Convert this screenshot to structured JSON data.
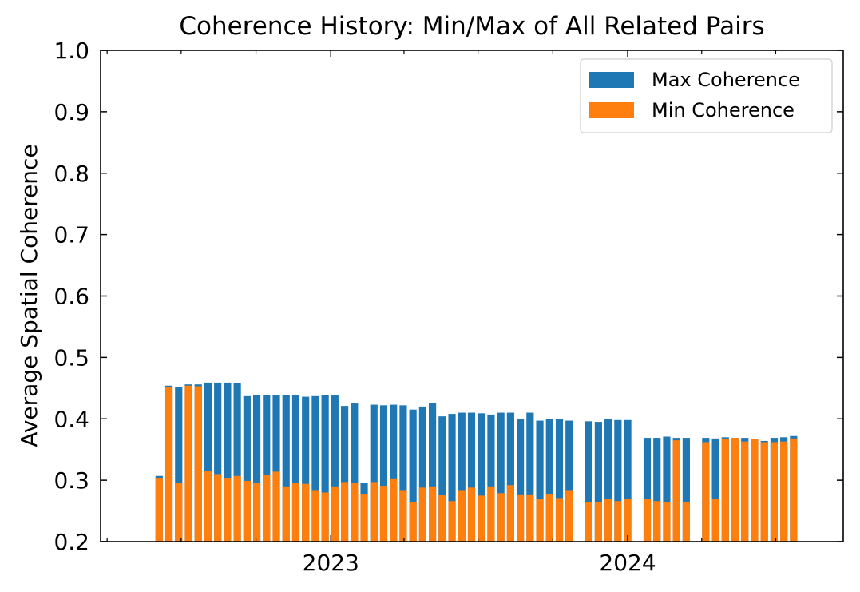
{
  "chart_data": {
    "type": "bar",
    "title": "Coherence History: Min/Max of All Related Pairs",
    "xlabel": "",
    "ylabel": "Average Spatial Coherence",
    "ylim": [
      0.2,
      1.0
    ],
    "xlim": [
      "2022-03-24",
      "2024-09-22"
    ],
    "y_ticks": [
      "0.2",
      "0.3",
      "0.4",
      "0.5",
      "0.6",
      "0.7",
      "0.8",
      "0.9",
      "1.0"
    ],
    "x_ticks": [
      {
        "label": "2023",
        "date": "2023-01-01"
      },
      {
        "label": "2024",
        "date": "2024-01-01"
      }
    ],
    "grid": false,
    "legend": "top-right",
    "colors": {
      "max": "#1f77b4",
      "min": "#ff7f0e"
    },
    "series": [
      {
        "name": "Max Coherence",
        "x": [
          "2022-06-04",
          "2022-06-16",
          "2022-06-28",
          "2022-07-10",
          "2022-07-22",
          "2022-08-03",
          "2022-08-15",
          "2022-08-27",
          "2022-09-08",
          "2022-09-20",
          "2022-10-02",
          "2022-10-14",
          "2022-10-26",
          "2022-11-07",
          "2022-11-19",
          "2022-12-01",
          "2022-12-13",
          "2022-12-25",
          "2023-01-06",
          "2023-01-18",
          "2023-01-30",
          "2023-02-11",
          "2023-02-23",
          "2023-03-07",
          "2023-03-19",
          "2023-03-31",
          "2023-04-12",
          "2023-04-24",
          "2023-05-06",
          "2023-05-18",
          "2023-05-30",
          "2023-06-11",
          "2023-06-23",
          "2023-07-05",
          "2023-07-17",
          "2023-07-29",
          "2023-08-10",
          "2023-08-22",
          "2023-09-03",
          "2023-09-15",
          "2023-09-27",
          "2023-10-09",
          "2023-10-21",
          "2023-11-14",
          "2023-11-26",
          "2023-12-08",
          "2023-12-20",
          "2024-01-01",
          "2024-01-25",
          "2024-02-06",
          "2024-02-18",
          "2024-03-01",
          "2024-03-13",
          "2024-04-06",
          "2024-04-18",
          "2024-04-30",
          "2024-05-12",
          "2024-05-24",
          "2024-06-05",
          "2024-06-17",
          "2024-06-29",
          "2024-07-11",
          "2024-07-23"
        ],
        "values": [
          0.307,
          0.454,
          0.452,
          0.456,
          0.456,
          0.459,
          0.459,
          0.459,
          0.458,
          0.437,
          0.439,
          0.439,
          0.439,
          0.439,
          0.439,
          0.436,
          0.437,
          0.439,
          0.438,
          0.421,
          0.425,
          0.295,
          0.423,
          0.422,
          0.423,
          0.422,
          0.415,
          0.42,
          0.425,
          0.404,
          0.408,
          0.41,
          0.41,
          0.409,
          0.407,
          0.41,
          0.41,
          0.399,
          0.41,
          0.397,
          0.4,
          0.399,
          0.397,
          0.396,
          0.395,
          0.4,
          0.398,
          0.398,
          0.369,
          0.369,
          0.371,
          0.369,
          0.369,
          0.369,
          0.368,
          0.37,
          0.369,
          0.369,
          0.366,
          0.364,
          0.369,
          0.37,
          0.372
        ]
      },
      {
        "name": "Min Coherence",
        "x": [
          "2022-06-04",
          "2022-06-16",
          "2022-06-28",
          "2022-07-10",
          "2022-07-22",
          "2022-08-03",
          "2022-08-15",
          "2022-08-27",
          "2022-09-08",
          "2022-09-20",
          "2022-10-02",
          "2022-10-14",
          "2022-10-26",
          "2022-11-07",
          "2022-11-19",
          "2022-12-01",
          "2022-12-13",
          "2022-12-25",
          "2023-01-06",
          "2023-01-18",
          "2023-01-30",
          "2023-02-11",
          "2023-02-23",
          "2023-03-07",
          "2023-03-19",
          "2023-03-31",
          "2023-04-12",
          "2023-04-24",
          "2023-05-06",
          "2023-05-18",
          "2023-05-30",
          "2023-06-11",
          "2023-06-23",
          "2023-07-05",
          "2023-07-17",
          "2023-07-29",
          "2023-08-10",
          "2023-08-22",
          "2023-09-03",
          "2023-09-15",
          "2023-09-27",
          "2023-10-09",
          "2023-10-21",
          "2023-11-14",
          "2023-11-26",
          "2023-12-08",
          "2023-12-20",
          "2024-01-01",
          "2024-01-25",
          "2024-02-06",
          "2024-02-18",
          "2024-03-01",
          "2024-03-13",
          "2024-04-06",
          "2024-04-18",
          "2024-04-30",
          "2024-05-12",
          "2024-05-24",
          "2024-06-05",
          "2024-06-17",
          "2024-06-29",
          "2024-07-11",
          "2024-07-23"
        ],
        "values": [
          0.304,
          0.452,
          0.295,
          0.454,
          0.453,
          0.315,
          0.31,
          0.304,
          0.307,
          0.299,
          0.296,
          0.308,
          0.314,
          0.29,
          0.295,
          0.294,
          0.284,
          0.28,
          0.29,
          0.297,
          0.295,
          0.278,
          0.297,
          0.291,
          0.303,
          0.284,
          0.265,
          0.288,
          0.29,
          0.276,
          0.266,
          0.284,
          0.288,
          0.275,
          0.29,
          0.279,
          0.292,
          0.277,
          0.277,
          0.27,
          0.278,
          0.271,
          0.284,
          0.265,
          0.265,
          0.27,
          0.266,
          0.27,
          0.269,
          0.266,
          0.265,
          0.365,
          0.265,
          0.362,
          0.269,
          0.368,
          0.369,
          0.363,
          0.367,
          0.362,
          0.362,
          0.363,
          0.368
        ]
      }
    ]
  }
}
